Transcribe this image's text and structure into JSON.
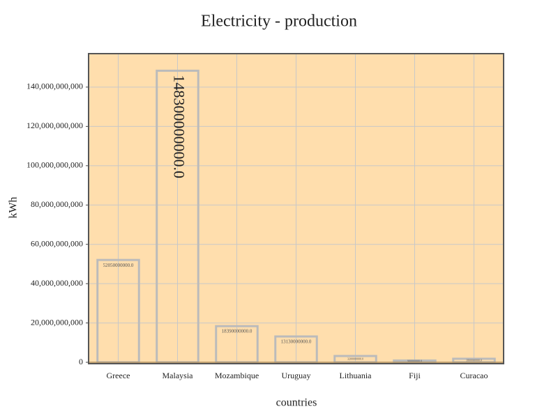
{
  "chart_data": {
    "type": "bar",
    "title": "Electricity - production",
    "x_label": "countries",
    "y_label": "kWh",
    "categories": [
      "Greece",
      "Malaysia",
      "Mozambique",
      "Uruguay",
      "Lithuania",
      "Fiji",
      "Curacao"
    ],
    "values": [
      52050000000,
      148300000000,
      18390000000,
      13130000000,
      3200000000,
      900000000,
      1800000000
    ],
    "value_labels": [
      "52050000000.0",
      "148300000000.0",
      "18390000000.0",
      "13130000000.0",
      "3200000000.0",
      "900000000.0",
      "1800000000.0"
    ],
    "color": "#bbbbbb",
    "background": "#ffdead",
    "ylim": [
      -700000000,
      157000000000
    ],
    "yticks": [
      0,
      {
        "value": 20000000000,
        "label": "20,000,000,000"
      },
      {
        "value": 40000000000,
        "label": "40,000,000,000"
      },
      {
        "value": 60000000000,
        "label": "60,000,000,000"
      },
      {
        "value": 80000000000,
        "label": "80,000,000,000"
      },
      {
        "value": 100000000000,
        "label": "100,000,000,000"
      },
      {
        "value": 120000000000,
        "label": "120,000,000,000"
      },
      {
        "value": 140000000000,
        "label": "140,000,000,000"
      }
    ],
    "grid": true
  }
}
